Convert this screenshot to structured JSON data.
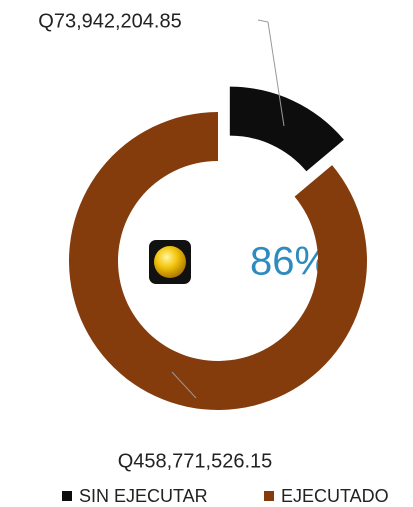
{
  "chart_data": {
    "type": "donut",
    "categories": [
      "SIN EJECUTAR",
      "EJECUTADO"
    ],
    "values": [
      73942204.85,
      458771526.15
    ],
    "value_labels": [
      "Q73,942,204.85",
      "Q458,771,526.15"
    ],
    "colors": [
      "#0d0d0d",
      "#843c0c"
    ],
    "center_label": "86%",
    "legend": "bottom"
  }
}
